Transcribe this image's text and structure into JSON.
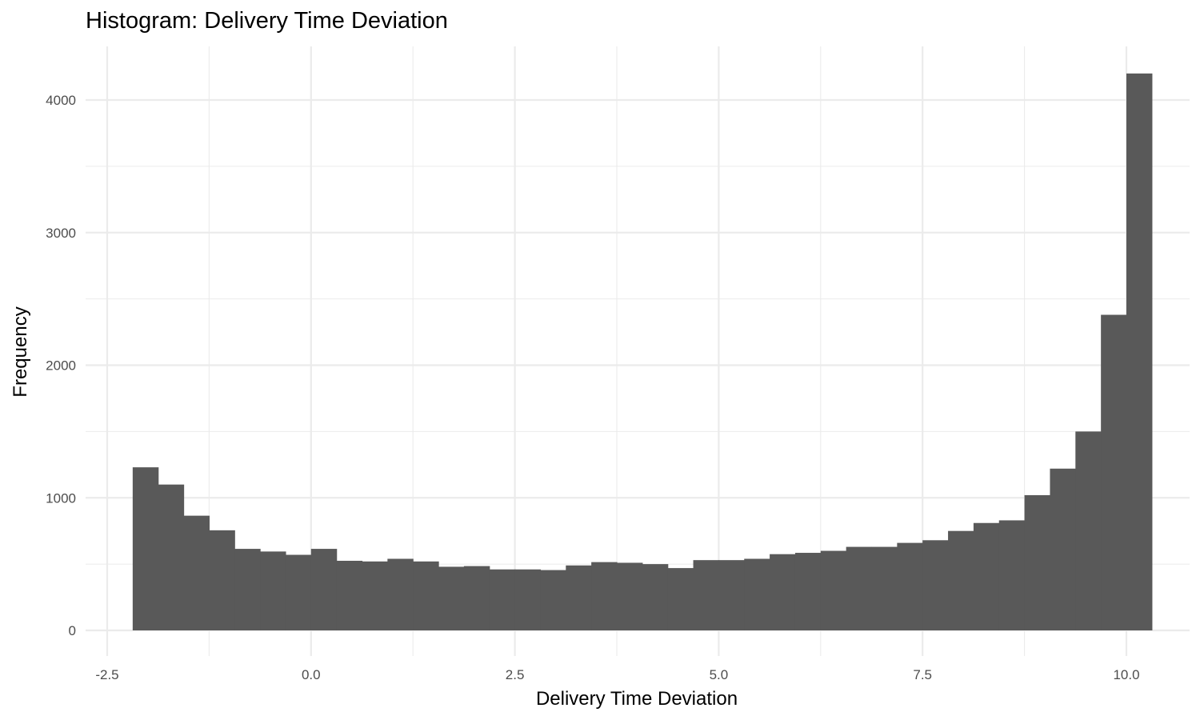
{
  "chart_data": {
    "type": "bar",
    "subtype": "histogram",
    "title": "Histogram: Delivery Time Deviation",
    "xlabel": "Delivery Time Deviation",
    "ylabel": "Frequency",
    "xlim": [
      -2.5,
      10.0
    ],
    "ylim": [
      0,
      4000
    ],
    "x_ticks": [
      "-2.5",
      "0.0",
      "2.5",
      "5.0",
      "7.5",
      "10.0"
    ],
    "y_ticks": [
      "0",
      "1000",
      "2000",
      "3000",
      "4000"
    ],
    "grid": true,
    "legend": "none",
    "bin_width": 0.3125,
    "bins": [
      {
        "x_start": -2.1875,
        "x_end": -1.875,
        "count": 1230
      },
      {
        "x_start": -1.875,
        "x_end": -1.5625,
        "count": 1100
      },
      {
        "x_start": -1.5625,
        "x_end": -1.25,
        "count": 865
      },
      {
        "x_start": -1.25,
        "x_end": -0.9375,
        "count": 755
      },
      {
        "x_start": -0.9375,
        "x_end": -0.625,
        "count": 615
      },
      {
        "x_start": -0.625,
        "x_end": -0.3125,
        "count": 595
      },
      {
        "x_start": -0.3125,
        "x_end": 0.0,
        "count": 570
      },
      {
        "x_start": 0.0,
        "x_end": 0.3125,
        "count": 615
      },
      {
        "x_start": 0.3125,
        "x_end": 0.625,
        "count": 525
      },
      {
        "x_start": 0.625,
        "x_end": 0.9375,
        "count": 520
      },
      {
        "x_start": 0.9375,
        "x_end": 1.25,
        "count": 540
      },
      {
        "x_start": 1.25,
        "x_end": 1.5625,
        "count": 520
      },
      {
        "x_start": 1.5625,
        "x_end": 1.875,
        "count": 480
      },
      {
        "x_start": 1.875,
        "x_end": 2.1875,
        "count": 485
      },
      {
        "x_start": 2.1875,
        "x_end": 2.5,
        "count": 460
      },
      {
        "x_start": 2.5,
        "x_end": 2.8125,
        "count": 460
      },
      {
        "x_start": 2.8125,
        "x_end": 3.125,
        "count": 455
      },
      {
        "x_start": 3.125,
        "x_end": 3.4375,
        "count": 490
      },
      {
        "x_start": 3.4375,
        "x_end": 3.75,
        "count": 515
      },
      {
        "x_start": 3.75,
        "x_end": 4.0625,
        "count": 510
      },
      {
        "x_start": 4.0625,
        "x_end": 4.375,
        "count": 500
      },
      {
        "x_start": 4.375,
        "x_end": 4.6875,
        "count": 470
      },
      {
        "x_start": 4.6875,
        "x_end": 5.0,
        "count": 530
      },
      {
        "x_start": 5.0,
        "x_end": 5.3125,
        "count": 530
      },
      {
        "x_start": 5.3125,
        "x_end": 5.625,
        "count": 540
      },
      {
        "x_start": 5.625,
        "x_end": 5.9375,
        "count": 575
      },
      {
        "x_start": 5.9375,
        "x_end": 6.25,
        "count": 585
      },
      {
        "x_start": 6.25,
        "x_end": 6.5625,
        "count": 600
      },
      {
        "x_start": 6.5625,
        "x_end": 6.875,
        "count": 630
      },
      {
        "x_start": 6.875,
        "x_end": 7.1875,
        "count": 630
      },
      {
        "x_start": 7.1875,
        "x_end": 7.5,
        "count": 660
      },
      {
        "x_start": 7.5,
        "x_end": 7.8125,
        "count": 680
      },
      {
        "x_start": 7.8125,
        "x_end": 8.125,
        "count": 750
      },
      {
        "x_start": 8.125,
        "x_end": 8.4375,
        "count": 810
      },
      {
        "x_start": 8.4375,
        "x_end": 8.75,
        "count": 830
      },
      {
        "x_start": 8.75,
        "x_end": 9.0625,
        "count": 1020
      },
      {
        "x_start": 9.0625,
        "x_end": 9.375,
        "count": 1220
      },
      {
        "x_start": 9.375,
        "x_end": 9.6875,
        "count": 1500
      },
      {
        "x_start": 9.6875,
        "x_end": 10.0,
        "count": 2380
      },
      {
        "x_start": 10.0,
        "x_end": 10.3125,
        "count": 4200
      }
    ],
    "colors": {
      "bar_fill": "#595959",
      "grid": "#ebebeb",
      "tick_text": "#4d4d4d",
      "title_text": "#000000",
      "background": "#ffffff"
    }
  }
}
